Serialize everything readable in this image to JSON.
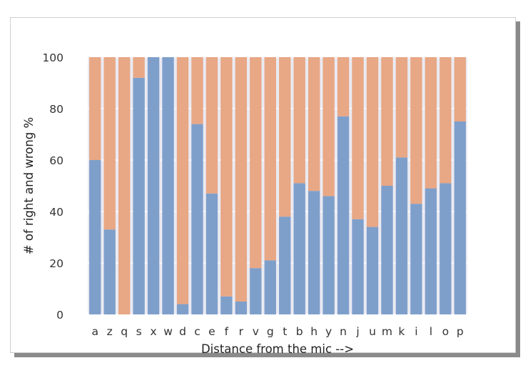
{
  "chart_data": {
    "type": "bar",
    "stacked": true,
    "categories": [
      "a",
      "z",
      "q",
      "s",
      "x",
      "w",
      "d",
      "c",
      "e",
      "f",
      "r",
      "v",
      "g",
      "t",
      "b",
      "h",
      "y",
      "n",
      "j",
      "u",
      "m",
      "k",
      "i",
      "l",
      "o",
      "p"
    ],
    "series": [
      {
        "values": [
          60,
          33,
          0,
          92,
          100,
          100,
          4,
          74,
          47,
          7,
          5,
          18,
          21,
          38,
          51,
          48,
          46,
          77,
          37,
          34,
          50,
          61,
          43,
          49,
          51,
          75
        ]
      },
      {
        "values": [
          40,
          67,
          100,
          8,
          0,
          0,
          96,
          26,
          53,
          93,
          95,
          82,
          79,
          62,
          49,
          52,
          54,
          23,
          63,
          66,
          50,
          39,
          57,
          51,
          49,
          25
        ]
      }
    ],
    "colors": [
      "#7f9fcb",
      "#e8a785"
    ],
    "background": "#eaeaf2",
    "grid": true,
    "xlabel": "Distance from the mic -->",
    "ylabel": "# of right and wrong %",
    "ylim": [
      0,
      100
    ],
    "yticks": [
      0,
      20,
      40,
      60,
      80,
      100
    ]
  }
}
